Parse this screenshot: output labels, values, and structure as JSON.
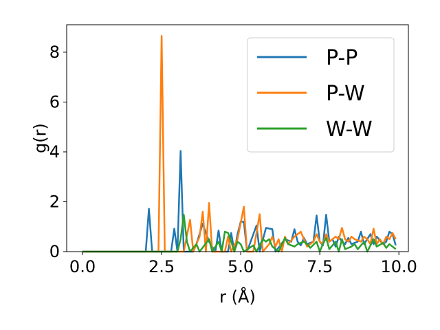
{
  "chart_data": {
    "type": "line",
    "xlabel": "r (Å)",
    "ylabel": "g(r)",
    "xlim": [
      -0.5,
      10.3
    ],
    "ylim": [
      0,
      9.1
    ],
    "x_ticks": [
      0.0,
      2.5,
      5.0,
      7.5,
      10.0
    ],
    "x_tick_labels": [
      "0.0",
      "2.5",
      "5.0",
      "7.5",
      "10.0"
    ],
    "y_ticks": [
      0,
      2,
      4,
      6,
      8
    ],
    "y_tick_labels": [
      "0",
      "2",
      "4",
      "6",
      "8"
    ],
    "grid": false,
    "legend": "upper right",
    "series": [
      {
        "name": "P-P",
        "color": "#1f77b4",
        "points": [
          [
            0.0,
            0
          ],
          [
            2.0,
            0
          ],
          [
            2.1,
            1.72
          ],
          [
            2.2,
            0
          ],
          [
            2.8,
            0
          ],
          [
            2.9,
            0.92
          ],
          [
            3.0,
            0
          ],
          [
            3.1,
            4.04
          ],
          [
            3.2,
            0
          ],
          [
            3.5,
            0
          ],
          [
            3.6,
            0.3
          ],
          [
            3.8,
            1.12
          ],
          [
            4.0,
            0.4
          ],
          [
            4.2,
            0
          ],
          [
            4.3,
            0.85
          ],
          [
            4.4,
            0
          ],
          [
            4.6,
            0
          ],
          [
            4.7,
            0.75
          ],
          [
            4.8,
            0
          ],
          [
            4.9,
            0.7
          ],
          [
            5.0,
            1.2
          ],
          [
            5.1,
            1.2
          ],
          [
            5.2,
            0
          ],
          [
            5.5,
            1.05
          ],
          [
            5.6,
            0
          ],
          [
            5.8,
            0.95
          ],
          [
            6.0,
            0.9
          ],
          [
            6.1,
            0
          ],
          [
            6.4,
            0.5
          ],
          [
            6.6,
            0.4
          ],
          [
            6.7,
            0.9
          ],
          [
            6.8,
            0.4
          ],
          [
            6.9,
            0.25
          ],
          [
            7.0,
            0.55
          ],
          [
            7.1,
            0.3
          ],
          [
            7.3,
            0.4
          ],
          [
            7.4,
            1.45
          ],
          [
            7.5,
            0.4
          ],
          [
            7.6,
            0.25
          ],
          [
            7.7,
            1.48
          ],
          [
            7.8,
            0.4
          ],
          [
            7.9,
            0.5
          ],
          [
            8.0,
            0.2
          ],
          [
            8.1,
            0.6
          ],
          [
            8.2,
            0.4
          ],
          [
            8.3,
            0.3
          ],
          [
            8.4,
            0.55
          ],
          [
            8.5,
            0.3
          ],
          [
            8.7,
            0.4
          ],
          [
            8.8,
            0.8
          ],
          [
            8.9,
            0.3
          ],
          [
            9.1,
            0.7
          ],
          [
            9.2,
            0.3
          ],
          [
            9.3,
            0.6
          ],
          [
            9.5,
            0.3
          ],
          [
            9.6,
            0.4
          ],
          [
            9.7,
            0.8
          ],
          [
            9.8,
            0.7
          ],
          [
            9.9,
            0.25
          ]
        ]
      },
      {
        "name": "P-W",
        "color": "#ff7f0e",
        "points": [
          [
            0.0,
            0
          ],
          [
            2.4,
            0
          ],
          [
            2.5,
            8.65
          ],
          [
            2.6,
            0
          ],
          [
            3.2,
            0
          ],
          [
            3.4,
            1.28
          ],
          [
            3.5,
            0
          ],
          [
            3.7,
            0.6
          ],
          [
            3.8,
            1.6
          ],
          [
            3.9,
            0
          ],
          [
            4.0,
            1.95
          ],
          [
            4.1,
            0
          ],
          [
            4.5,
            0
          ],
          [
            4.6,
            0.6
          ],
          [
            4.7,
            0
          ],
          [
            4.9,
            0.5
          ],
          [
            5.1,
            1.8
          ],
          [
            5.2,
            0
          ],
          [
            5.4,
            0
          ],
          [
            5.6,
            1.5
          ],
          [
            5.7,
            0
          ],
          [
            5.9,
            0.3
          ],
          [
            6.0,
            0.6
          ],
          [
            6.1,
            0.2
          ],
          [
            6.2,
            0.5
          ],
          [
            6.3,
            0
          ],
          [
            6.4,
            0.6
          ],
          [
            6.5,
            0.3
          ],
          [
            6.7,
            0.6
          ],
          [
            6.8,
            0.7
          ],
          [
            6.9,
            0.8
          ],
          [
            7.0,
            0.5
          ],
          [
            7.1,
            0.2
          ],
          [
            7.3,
            0.4
          ],
          [
            7.4,
            0.7
          ],
          [
            7.5,
            0.4
          ],
          [
            7.6,
            0.3
          ],
          [
            7.7,
            0.7
          ],
          [
            7.8,
            0.4
          ],
          [
            8.0,
            0.6
          ],
          [
            8.1,
            0.5
          ],
          [
            8.2,
            0.95
          ],
          [
            8.3,
            0.5
          ],
          [
            8.4,
            0.4
          ],
          [
            8.5,
            0.6
          ],
          [
            8.6,
            0.5
          ],
          [
            8.8,
            0.4
          ],
          [
            8.9,
            0.6
          ],
          [
            9.0,
            0.5
          ],
          [
            9.1,
            0.3
          ],
          [
            9.2,
            0.92
          ],
          [
            9.3,
            0.3
          ],
          [
            9.4,
            0.5
          ],
          [
            9.5,
            0.3
          ],
          [
            9.6,
            0.6
          ],
          [
            9.7,
            0.5
          ],
          [
            9.8,
            0.75
          ],
          [
            9.9,
            0.5
          ]
        ]
      },
      {
        "name": "W-W",
        "color": "#2ca02c",
        "points": [
          [
            0.0,
            0
          ],
          [
            3.0,
            0
          ],
          [
            3.1,
            0.5
          ],
          [
            3.2,
            1.48
          ],
          [
            3.3,
            0.4
          ],
          [
            3.4,
            0
          ],
          [
            3.6,
            0.3
          ],
          [
            3.7,
            0
          ],
          [
            4.0,
            0.5
          ],
          [
            4.1,
            0
          ],
          [
            4.3,
            0.4
          ],
          [
            4.4,
            0
          ],
          [
            4.5,
            0.8
          ],
          [
            4.6,
            0.75
          ],
          [
            4.7,
            0.4
          ],
          [
            4.8,
            0
          ],
          [
            4.9,
            0.4
          ],
          [
            5.0,
            0.3
          ],
          [
            5.1,
            0
          ],
          [
            5.4,
            0.25
          ],
          [
            5.5,
            0
          ],
          [
            5.7,
            0.5
          ],
          [
            5.8,
            0.4
          ],
          [
            5.9,
            0.5
          ],
          [
            6.0,
            0.2
          ],
          [
            6.2,
            0
          ],
          [
            6.4,
            0.55
          ],
          [
            6.5,
            0.3
          ],
          [
            6.7,
            0.2
          ],
          [
            6.8,
            0.3
          ],
          [
            7.0,
            0.4
          ],
          [
            7.1,
            0.3
          ],
          [
            7.2,
            0.15
          ],
          [
            7.4,
            0.4
          ],
          [
            7.5,
            0
          ],
          [
            7.6,
            0.3
          ],
          [
            7.7,
            0.55
          ],
          [
            7.8,
            0.1
          ],
          [
            8.0,
            0.4
          ],
          [
            8.1,
            0
          ],
          [
            8.2,
            0.5
          ],
          [
            8.3,
            0.1
          ],
          [
            8.5,
            0.2
          ],
          [
            8.6,
            0.3
          ],
          [
            8.7,
            0.1
          ],
          [
            8.9,
            0.4
          ],
          [
            9.0,
            0
          ],
          [
            9.2,
            0.5
          ],
          [
            9.3,
            0.2
          ],
          [
            9.5,
            0.35
          ],
          [
            9.6,
            0.15
          ],
          [
            9.7,
            0.3
          ],
          [
            9.8,
            0.2
          ],
          [
            9.9,
            0.1
          ]
        ]
      }
    ]
  }
}
